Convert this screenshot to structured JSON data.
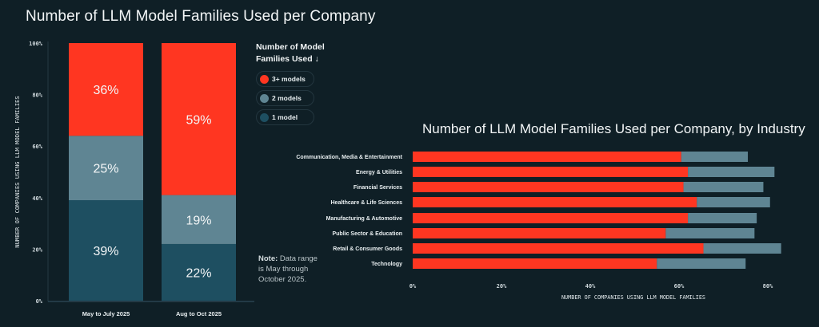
{
  "colors": {
    "background": "#0f1f26",
    "three_plus": "#ff3621",
    "two": "#5f8593",
    "one": "#1e4f61",
    "text": "#f2f5f6"
  },
  "legend": {
    "title": "Number of Model Families Used ↓",
    "items": [
      {
        "label": "3+ models",
        "color": "#ff3621"
      },
      {
        "label": "2 models",
        "color": "#5f8593"
      },
      {
        "label": "1 model",
        "color": "#1e4f61"
      }
    ]
  },
  "note": {
    "label": "Note:",
    "text": " Data range is May through October 2025."
  },
  "chart_data": [
    {
      "type": "bar",
      "stacked": true,
      "orientation": "vertical",
      "title": "Number of LLM Model Families Used per Company",
      "xlabel": "",
      "ylabel": "NUMBER OF COMPANIES USING LLM MODEL FAMILIES",
      "ylim": [
        0,
        100
      ],
      "yticks": [
        "0%",
        "20%",
        "40%",
        "60%",
        "80%",
        "100%"
      ],
      "categories": [
        "May to July 2025",
        "Aug to Oct 2025"
      ],
      "series": [
        {
          "name": "1 model",
          "values": [
            39,
            22
          ],
          "labels": [
            "39%",
            "22%"
          ]
        },
        {
          "name": "2 models",
          "values": [
            25,
            19
          ],
          "labels": [
            "25%",
            "19%"
          ]
        },
        {
          "name": "3+ models",
          "values": [
            36,
            59
          ],
          "labels": [
            "36%",
            "59%"
          ]
        }
      ]
    },
    {
      "type": "bar",
      "stacked": true,
      "orientation": "horizontal",
      "title": "Number of LLM Model Families Used per Company, by Industry",
      "xlabel": "NUMBER OF COMPANIES USING LLM MODEL FAMILIES",
      "ylabel": "",
      "xlim": [
        0,
        80
      ],
      "xticks": [
        "0%",
        "20%",
        "40%",
        "60%",
        "80%"
      ],
      "categories": [
        "Communication, Media & Entertainment",
        "Energy & Utilities",
        "Financial Services",
        "Healthcare & Life Sciences",
        "Manufacturing & Automotive",
        "Public Sector & Education",
        "Retail & Consumer Goods",
        "Technology"
      ],
      "series": [
        {
          "name": "3+ models",
          "values": [
            60.5,
            62,
            61,
            64,
            62,
            57,
            65.5,
            55
          ]
        },
        {
          "name": "2 models",
          "values": [
            15,
            19.5,
            18,
            16.5,
            15.5,
            20,
            17.5,
            20
          ]
        }
      ]
    }
  ]
}
